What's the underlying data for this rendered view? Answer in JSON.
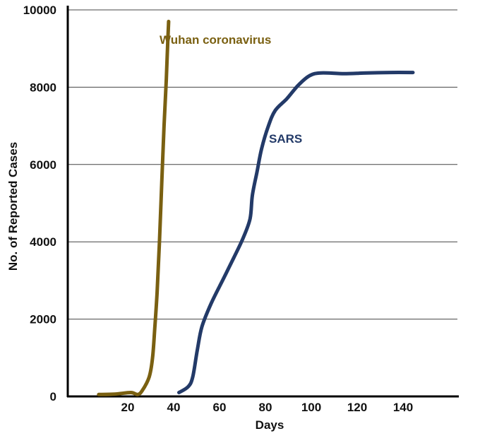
{
  "chart_data": {
    "type": "line",
    "xlabel": "Days",
    "ylabel": "No. of Reported Cases",
    "xlim": [
      0,
      145
    ],
    "ylim": [
      0,
      10000
    ],
    "x_ticks": [
      20,
      40,
      60,
      80,
      100,
      120,
      140
    ],
    "y_ticks": [
      0,
      2000,
      4000,
      6000,
      8000,
      10000
    ],
    "grid": "horizontal",
    "series": [
      {
        "name": "Wuhan coronavirus",
        "color": "#7a6011",
        "points": [
          [
            3,
            50
          ],
          [
            10,
            60
          ],
          [
            17,
            100
          ],
          [
            20,
            50
          ],
          [
            22,
            150
          ],
          [
            25,
            500
          ],
          [
            26.5,
            1000
          ],
          [
            27.5,
            1800
          ],
          [
            28.5,
            2700
          ],
          [
            29.5,
            4000
          ],
          [
            30.5,
            5500
          ],
          [
            31.5,
            7000
          ],
          [
            32.5,
            8200
          ],
          [
            33,
            9000
          ],
          [
            33.5,
            9700
          ]
        ]
      },
      {
        "name": "SARS",
        "color": "#233a68",
        "points": [
          [
            38,
            100
          ],
          [
            42,
            250
          ],
          [
            44,
            500
          ],
          [
            46,
            1200
          ],
          [
            48,
            1800
          ],
          [
            52,
            2400
          ],
          [
            57,
            3000
          ],
          [
            62,
            3600
          ],
          [
            66,
            4100
          ],
          [
            69,
            4600
          ],
          [
            70,
            5200
          ],
          [
            72,
            5800
          ],
          [
            74,
            6400
          ],
          [
            77,
            7000
          ],
          [
            80,
            7400
          ],
          [
            85,
            7700
          ],
          [
            90,
            8050
          ],
          [
            95,
            8300
          ],
          [
            100,
            8370
          ],
          [
            110,
            8350
          ],
          [
            120,
            8370
          ],
          [
            130,
            8380
          ],
          [
            140,
            8380
          ]
        ]
      }
    ]
  }
}
